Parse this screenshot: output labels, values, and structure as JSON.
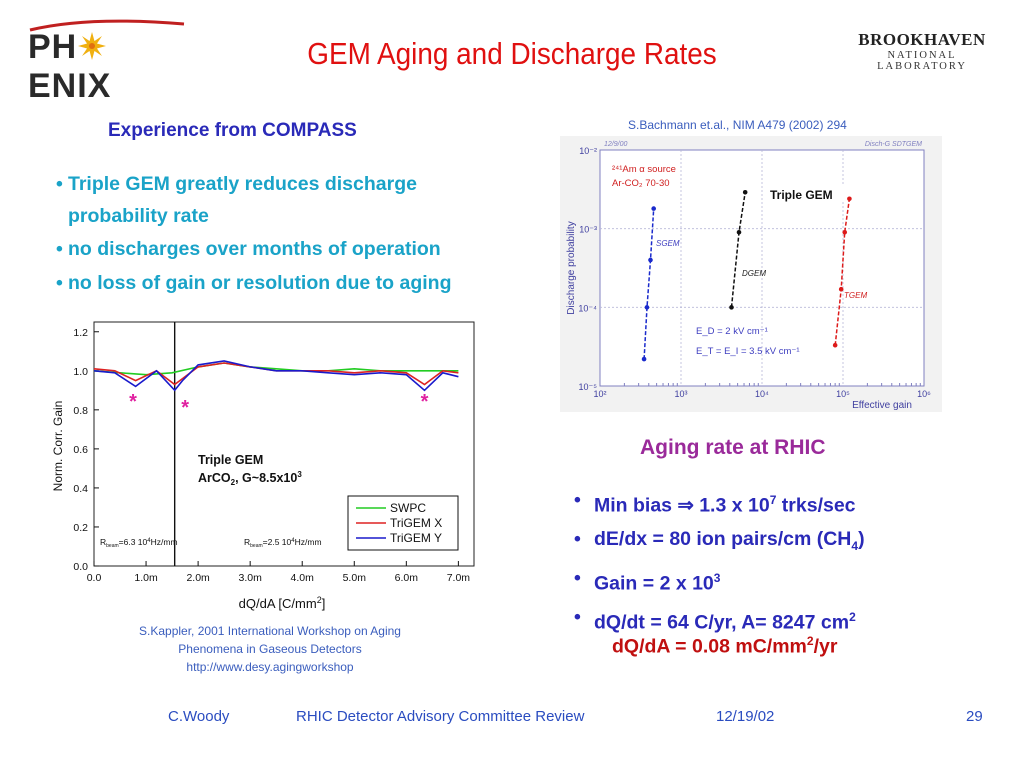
{
  "logo_left": {
    "text_pre": "PH",
    "text_post": "ENIX"
  },
  "title": "GEM Aging and Discharge Rates",
  "logo_right": {
    "line1": "BROOKHAVEN",
    "line2": "NATIONAL LABORATORY"
  },
  "compass": {
    "heading": "Experience from COMPASS",
    "bullets": [
      "Triple GEM greatly reduces discharge probability rate",
      "no discharges over months of operation",
      "no loss of gain or resolution due to aging"
    ]
  },
  "ref_bachmann": "S.Bachmann et.al., NIM A479 (2002) 294",
  "ref_kappler": [
    "S.Kappler, 2001 International Workshop on Aging",
    "Phenomena in Gaseous Detectors",
    "http://www.desy.agingworkshop"
  ],
  "rhic": {
    "heading": "Aging rate at RHIC",
    "min_bias": {
      "pre": "Min bias ",
      "arrow": "⇒",
      "post": " 1.3 x 10",
      "sup": "7",
      "tail": " trks/sec"
    },
    "dedx": {
      "pre": "dE/dx = 80 ion pairs/cm (CH",
      "sub": "4",
      "tail": ")"
    },
    "gain": {
      "pre": "Gain = 2 x 10",
      "sup": "3"
    },
    "dqdt": {
      "pre": "dQ/dt = 64 C/yr, A= 8247 cm",
      "sup": "2"
    },
    "dqda": {
      "pre": "dQ/dA = 0.08 mC/mm",
      "sup": "2",
      "tail": "/yr"
    }
  },
  "footer": {
    "author": "C.Woody",
    "event": "RHIC Detector Advisory Committee Review",
    "date": "12/19/02",
    "page": "29"
  },
  "colors": {
    "title": "#e01010",
    "compass_heading": "#2a2ab8",
    "bullets": "#1aa3c8",
    "rhic_heading": "#9a2a9a",
    "dqda": "#c01010",
    "footer": "#2a4cc0",
    "series_swpc": "#22cc22",
    "series_trigem_x": "#dd2222",
    "series_trigem_y": "#1a1acc",
    "star": "#e020a0"
  },
  "chart_data": [
    {
      "type": "line",
      "ylabel": "Norm. Corr. Gain",
      "xlabel": "dQ/dA [C/mm",
      "xlabel_sup": "2",
      "xlabel_tail": "]",
      "xlim": [
        0,
        7.3
      ],
      "ylim": [
        0,
        1.25
      ],
      "xticks": [
        0,
        1,
        2,
        3,
        4,
        5,
        6,
        7
      ],
      "xtick_labels": [
        "0.0",
        "1.0m",
        "2.0m",
        "3.0m",
        "4.0m",
        "5.0m",
        "6.0m",
        "7.0m"
      ],
      "yticks": [
        0,
        0.2,
        0.4,
        0.6,
        0.8,
        1.0,
        1.2
      ],
      "ytick_labels": [
        "0.0",
        "0.2",
        "0.4",
        "0.6",
        "0.8",
        "1.0",
        "1.2"
      ],
      "annotation": {
        "line1": "Triple GEM",
        "line2_pre": "ArCO",
        "line2_sub": "2",
        "line2_post": ", G~8.5x10",
        "line2_sup": "3"
      },
      "rate_note_left": {
        "pre": "R",
        "sub": "beam",
        "post": "=6.3 10",
        "sup": "4",
        "tail": "Hz/mm"
      },
      "rate_note_right": {
        "pre": "R",
        "sub": "beam",
        "post": "=2.5  10",
        "sup": "4",
        "tail": "Hz/mm"
      },
      "divider_x": 1.55,
      "stars": [
        {
          "x": 0.75,
          "y": 0.84,
          "label": "*"
        },
        {
          "x": 1.75,
          "y": 0.81,
          "label": "*"
        },
        {
          "x": 6.35,
          "y": 0.84,
          "label": "*"
        }
      ],
      "legend_position": "lower-right",
      "series": [
        {
          "name": "SWPC",
          "color": "#22cc22",
          "x": [
            0,
            0.5,
            1.0,
            1.5,
            2.0,
            2.5,
            3.0,
            3.5,
            4.0,
            4.5,
            5.0,
            5.5,
            6.0,
            6.5,
            7.0
          ],
          "y": [
            1.0,
            0.99,
            0.98,
            0.99,
            1.02,
            1.04,
            1.02,
            1.01,
            1.0,
            1.0,
            1.01,
            1.0,
            1.0,
            1.0,
            1.0
          ]
        },
        {
          "name": "TriGEM X",
          "color": "#dd2222",
          "x": [
            0,
            0.4,
            0.8,
            1.2,
            1.55,
            1.7,
            2.0,
            2.5,
            3.0,
            3.5,
            4.0,
            4.5,
            5.0,
            5.5,
            6.0,
            6.35,
            6.7,
            7.0
          ],
          "y": [
            1.01,
            1.0,
            0.95,
            1.0,
            0.93,
            0.96,
            1.02,
            1.04,
            1.02,
            1.0,
            1.0,
            1.0,
            0.99,
            1.0,
            0.99,
            0.93,
            1.0,
            0.99
          ]
        },
        {
          "name": "TriGEM Y",
          "color": "#1a1acc",
          "x": [
            0,
            0.4,
            0.8,
            1.2,
            1.55,
            1.7,
            2.0,
            2.5,
            3.0,
            3.5,
            4.0,
            4.5,
            5.0,
            5.5,
            6.0,
            6.35,
            6.7,
            7.0
          ],
          "y": [
            1.0,
            0.99,
            0.92,
            1.0,
            0.9,
            0.95,
            1.03,
            1.05,
            1.02,
            1.0,
            1.0,
            0.99,
            0.98,
            0.99,
            0.98,
            0.9,
            0.99,
            0.97
          ]
        }
      ]
    },
    {
      "type": "scatter",
      "log_x": true,
      "log_y": true,
      "xlabel": "Effective gain",
      "ylabel": "Discharge probability",
      "xlim": [
        100,
        1000000
      ],
      "ylim": [
        1e-05,
        0.01
      ],
      "xtick_labels": [
        "10²",
        "10³",
        "10⁴",
        "10⁵",
        "10⁶"
      ],
      "ytick_labels": [
        "10⁻⁵",
        "10⁻⁴",
        "10⁻³",
        "10⁻²"
      ],
      "corner_left": "12/9/00",
      "corner_right": "Disch-G SDTGEM",
      "source_note": {
        "line1": "²⁴¹Am α source",
        "line2": "Ar-CO₂ 70-30"
      },
      "field_note": {
        "line1": "E_D = 2 kV cm⁻¹",
        "line2": "E_T = E_I = 3.5 kV cm⁻¹"
      },
      "highlight_label": "Triple GEM",
      "series": [
        {
          "name": "SGEM",
          "color": "#1a2acc",
          "x": [
            350,
            380,
            420,
            460
          ],
          "y": [
            2.2e-05,
            0.0001,
            0.0004,
            0.0018
          ]
        },
        {
          "name": "DGEM",
          "color": "#111111",
          "x": [
            4200,
            5200,
            6200
          ],
          "y": [
            0.0001,
            0.0009,
            0.0029
          ]
        },
        {
          "name": "TGEM",
          "color": "#dd1a1a",
          "x": [
            80000,
            95000,
            105000,
            120000
          ],
          "y": [
            3.3e-05,
            0.00017,
            0.0009,
            0.0024
          ]
        }
      ]
    }
  ]
}
